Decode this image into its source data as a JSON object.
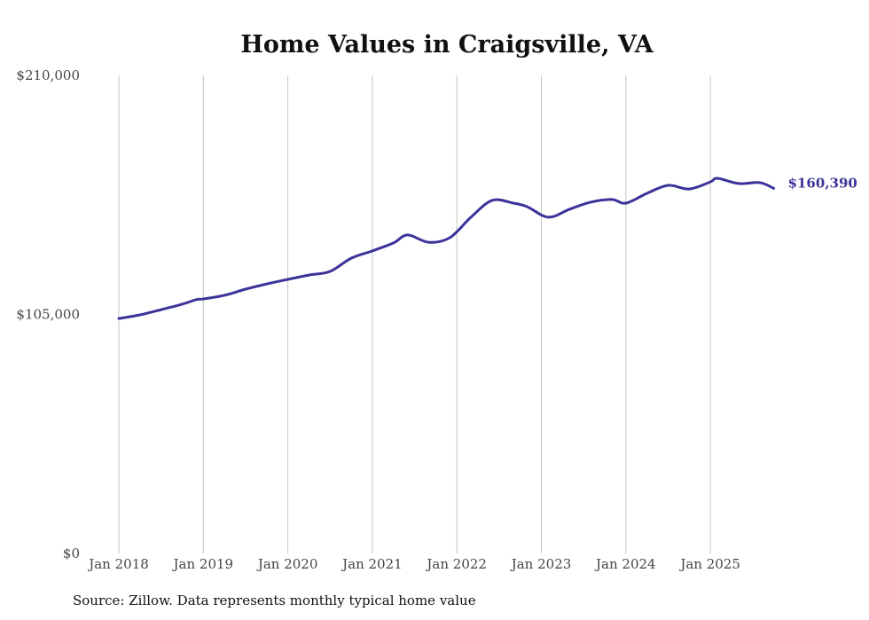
{
  "chart_data": {
    "type": "line",
    "title": "Home Values in Craigsville, VA",
    "xlabel": "",
    "ylabel": "",
    "ylim": [
      0,
      210000
    ],
    "y_ticks": [
      0,
      105000,
      210000
    ],
    "y_tick_labels": [
      "$0",
      "$105,000",
      "$210,000"
    ],
    "x_tick_labels": [
      "Jan 2018",
      "Jan 2019",
      "Jan 2020",
      "Jan 2021",
      "Jan 2022",
      "Jan 2023",
      "Jan 2024",
      "Jan 2025"
    ],
    "grid": "vertical at each January",
    "legend": "none",
    "line_color": "#3b3399",
    "end_label": "$160,390",
    "series": [
      {
        "name": "Typical home value",
        "points": [
          [
            "2018-01",
            103200
          ],
          [
            "2018-04",
            104800
          ],
          [
            "2018-07",
            107100
          ],
          [
            "2018-10",
            109500
          ],
          [
            "2018-12",
            111500
          ],
          [
            "2019-01",
            111800
          ],
          [
            "2019-04",
            113400
          ],
          [
            "2019-07",
            116100
          ],
          [
            "2019-10",
            118400
          ],
          [
            "2020-01",
            120400
          ],
          [
            "2020-04",
            122300
          ],
          [
            "2020-07",
            123900
          ],
          [
            "2020-10",
            129700
          ],
          [
            "2021-01",
            132900
          ],
          [
            "2021-04",
            136400
          ],
          [
            "2021-06",
            139900
          ],
          [
            "2021-09",
            136700
          ],
          [
            "2021-12",
            138700
          ],
          [
            "2022-03",
            147700
          ],
          [
            "2022-06",
            155100
          ],
          [
            "2022-09",
            153900
          ],
          [
            "2022-11",
            152300
          ],
          [
            "2023-02",
            147700
          ],
          [
            "2023-05",
            151200
          ],
          [
            "2023-08",
            154300
          ],
          [
            "2023-11",
            155500
          ],
          [
            "2024-01",
            153900
          ],
          [
            "2024-04",
            158200
          ],
          [
            "2024-07",
            161700
          ],
          [
            "2024-10",
            160100
          ],
          [
            "2025-01",
            163200
          ],
          [
            "2025-02",
            164800
          ],
          [
            "2025-05",
            162500
          ],
          [
            "2025-08",
            162900
          ],
          [
            "2025-10",
            160390
          ]
        ]
      }
    ]
  },
  "source": "Source: Zillow. Data represents monthly typical home value"
}
